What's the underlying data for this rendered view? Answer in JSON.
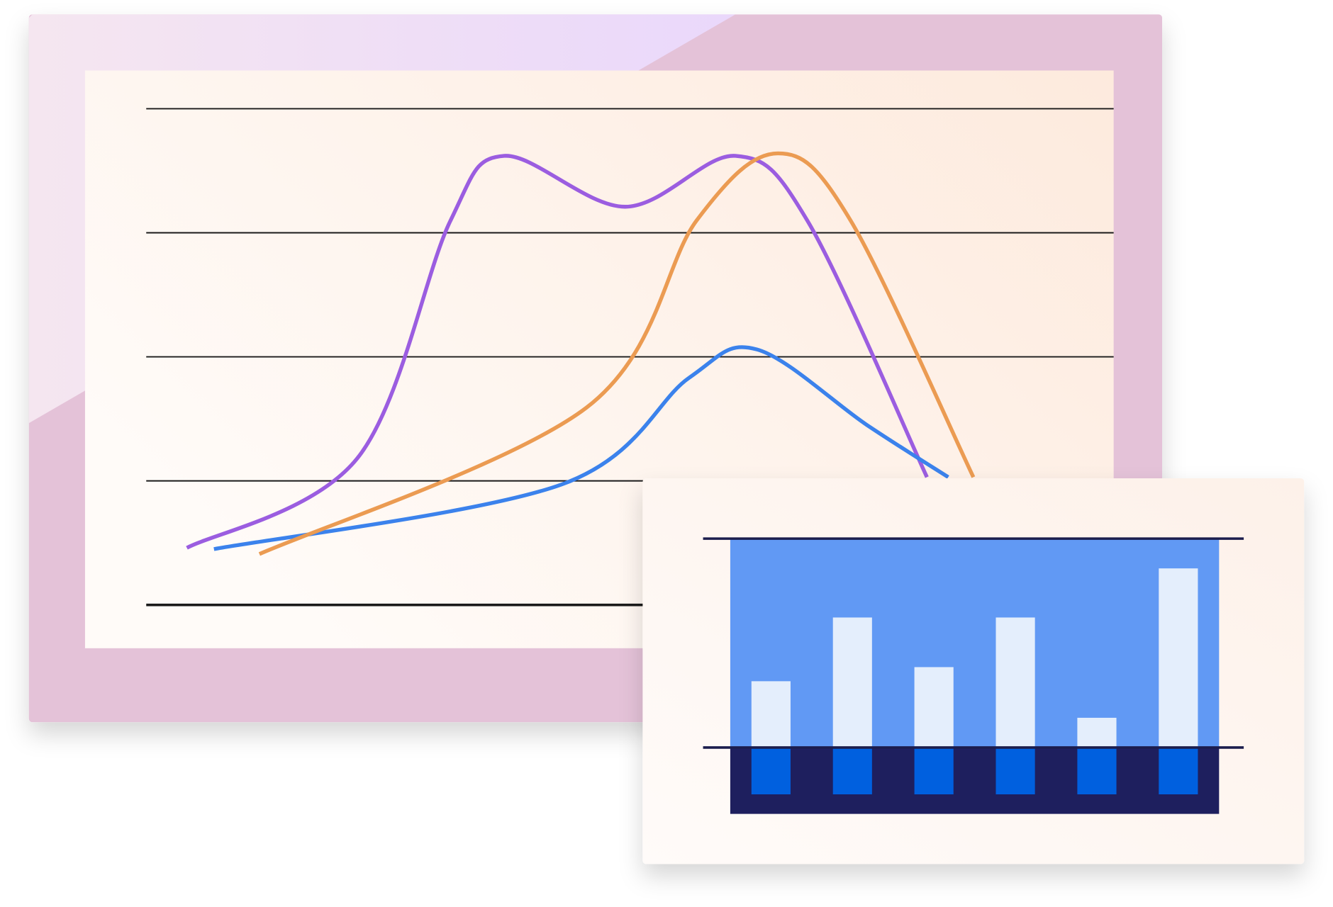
{
  "chart_data": [
    {
      "type": "line",
      "xlim": [
        0,
        10
      ],
      "ylim": [
        0,
        4
      ],
      "yticks": [
        0,
        1,
        2,
        3,
        4
      ],
      "grid": true,
      "series": [
        {
          "color": "#9b5de0",
          "x": [
            0.42,
            2.18,
            3.14,
            3.7,
            4.95,
            6.09,
            6.84,
            8.07
          ],
          "values": [
            0.46,
            1.18,
            3.09,
            3.62,
            3.21,
            3.62,
            3.09,
            1.03
          ]
        },
        {
          "color": "#3b82ec",
          "x": [
            0.7,
            4.29,
            5.61,
            6.31,
            7.45,
            8.29
          ],
          "values": [
            0.45,
            0.97,
            1.83,
            2.06,
            1.45,
            1.03
          ]
        },
        {
          "color": "#eb9b52",
          "x": [
            1.17,
            4.55,
            5.69,
            6.53,
            7.28,
            8.55
          ],
          "values": [
            0.41,
            1.59,
            3.1,
            3.64,
            3.1,
            1.03
          ]
        }
      ]
    },
    {
      "type": "bar",
      "categories": [
        null,
        null,
        null,
        null,
        null,
        null
      ],
      "values": [
        1.27,
        2.49,
        1.54,
        2.49,
        0.57,
        3.43
      ],
      "color": "#e4eefc",
      "ylim": [
        -1.27,
        4
      ],
      "yticks": [
        0,
        4
      ],
      "grid": true
    }
  ]
}
